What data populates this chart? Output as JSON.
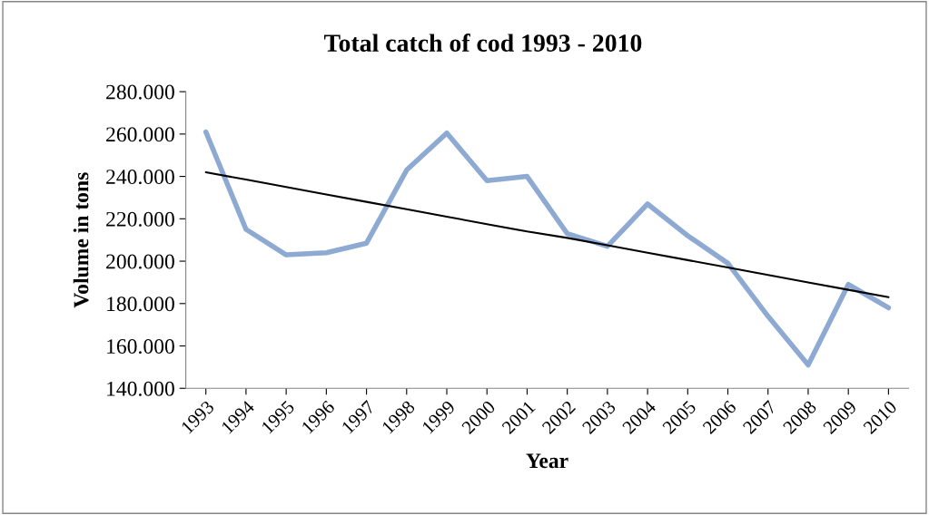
{
  "chart_data": {
    "type": "line",
    "title": "Total catch of cod 1993 - 2010",
    "xlabel": "Year",
    "ylabel": "Volume in tons",
    "categories": [
      "1993",
      "1994",
      "1995",
      "1996",
      "1997",
      "1998",
      "1999",
      "2000",
      "2001",
      "2002",
      "2003",
      "2004",
      "2005",
      "2006",
      "2007",
      "2008",
      "2009",
      "2010"
    ],
    "series": [
      {
        "color": "#8eaad3",
        "values": [
          261000,
          215000,
          203000,
          204000,
          208500,
          243000,
          260500,
          238000,
          240000,
          213000,
          207000,
          227000,
          212000,
          199000,
          174000,
          151000,
          189000,
          178000
        ]
      },
      {
        "type": "line",
        "color": "#000000",
        "values": [
          242000,
          238500,
          235000,
          231500,
          228000,
          224500,
          221000,
          217500,
          214000,
          211000,
          207500,
          204000,
          200500,
          197000,
          193500,
          190000,
          186500,
          183000
        ]
      }
    ],
    "ylim": [
      140000,
      280000
    ],
    "yticks": [
      {
        "value": 140000,
        "label": "140.000"
      },
      {
        "value": 160000,
        "label": "160.000"
      },
      {
        "value": 180000,
        "label": "180.000"
      },
      {
        "value": 200000,
        "label": "200.000"
      },
      {
        "value": 220000,
        "label": "220.000"
      },
      {
        "value": 240000,
        "label": "240.000"
      },
      {
        "value": 260000,
        "label": "260.000"
      },
      {
        "value": 280000,
        "label": "280.000"
      }
    ],
    "grid": false,
    "legend": false,
    "marker": "none",
    "line_style": "solid"
  }
}
